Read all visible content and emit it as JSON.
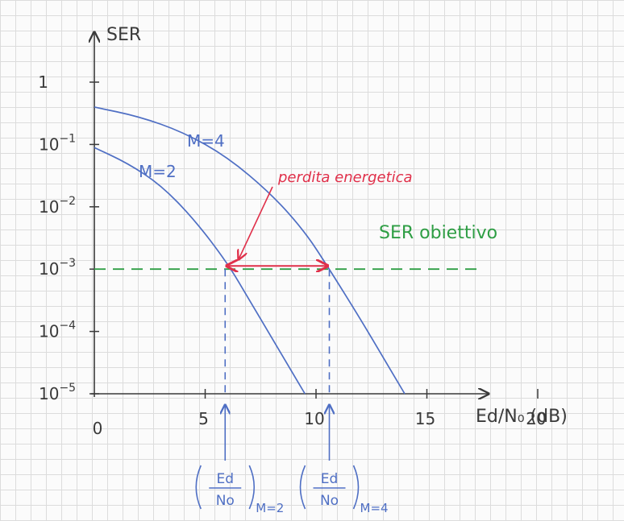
{
  "chart_data": {
    "type": "line",
    "ylabel": "SER",
    "xlabel": "Ed/N₀ (dB)",
    "x_ticks": [
      {
        "value": 0,
        "label": "0"
      },
      {
        "value": 5,
        "label": "5"
      },
      {
        "value": 10,
        "label": "10"
      },
      {
        "value": 15,
        "label": "15"
      },
      {
        "value": 20,
        "label": "20"
      }
    ],
    "y_ticks": [
      {
        "exp": 0,
        "base": "1",
        "sup": ""
      },
      {
        "exp": -1,
        "base": "10",
        "sup": "−1"
      },
      {
        "exp": -2,
        "base": "10",
        "sup": "−2"
      },
      {
        "exp": -3,
        "base": "10",
        "sup": "−3"
      },
      {
        "exp": -4,
        "base": "10",
        "sup": "−4"
      },
      {
        "exp": -5,
        "base": "10",
        "sup": "−5"
      }
    ],
    "ylim_exp": [
      -5,
      0
    ],
    "xlim": [
      0,
      18
    ],
    "y_scale": "log",
    "series": [
      {
        "name": "M=2",
        "x": [
          0,
          1.5,
          3,
          4.5,
          6,
          7,
          8,
          9,
          9.5
        ],
        "y_exp": [
          -1.05,
          -1.3,
          -1.65,
          -2.2,
          -2.9,
          -3.5,
          -4.1,
          -4.7,
          -5.0
        ]
      },
      {
        "name": "M=4",
        "x": [
          0,
          2,
          4,
          6,
          8,
          9.5,
          10.6,
          12,
          13,
          14
        ],
        "y_exp": [
          -0.4,
          -0.55,
          -0.8,
          -1.2,
          -1.8,
          -2.4,
          -3.0,
          -3.8,
          -4.4,
          -5.0
        ]
      }
    ],
    "target": {
      "label": "SER obiettivo",
      "y_exp": -3,
      "x_end": 17.5,
      "color": "#2e9e44"
    },
    "energy_loss": {
      "label": "perdita energetica",
      "x_from": 5.9,
      "x_to": 10.6,
      "color": "#e0304a"
    },
    "markers": [
      {
        "name": "M=2",
        "x": 5.9,
        "num": "Ed",
        "den": "No",
        "sub": "M=2"
      },
      {
        "name": "M=4",
        "x": 10.6,
        "num": "Ed",
        "den": "No",
        "sub": "M=4"
      }
    ],
    "colors": {
      "curve": "#4f6fc4",
      "axis": "#3a3a3a",
      "target": "#2e9e44",
      "loss": "#e0304a"
    }
  }
}
